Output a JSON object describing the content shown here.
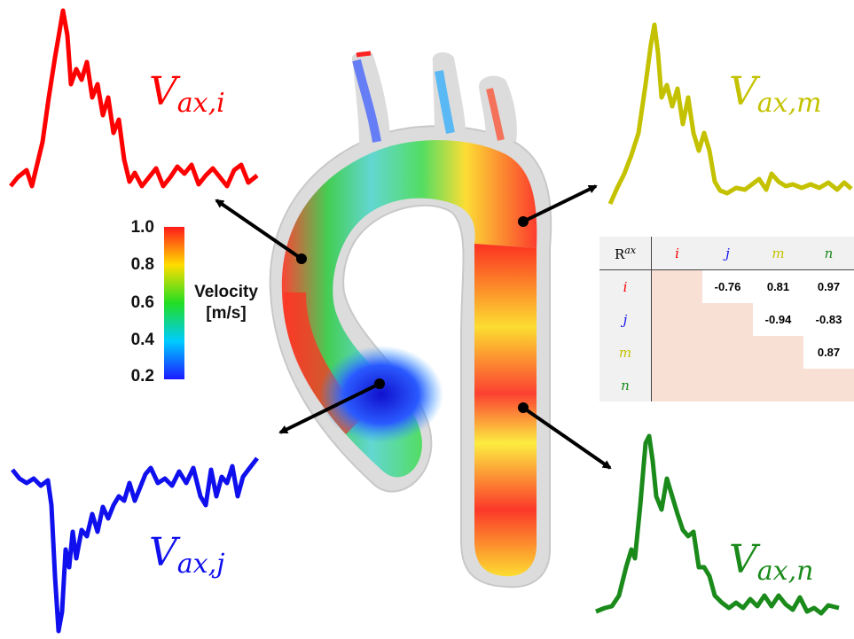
{
  "labels": {
    "i": {
      "base": "V",
      "sub": "ax,i",
      "color": "#ff0000"
    },
    "j": {
      "base": "V",
      "sub": "ax,j",
      "color": "#1010ee"
    },
    "m": {
      "base": "V",
      "sub": "ax,m",
      "color": "#c4c200"
    },
    "n": {
      "base": "V",
      "sub": "ax,n",
      "color": "#1a8a1a"
    }
  },
  "colorbar": {
    "title_line1": "Velocity",
    "title_line2": "[m/s]",
    "ticks": [
      "1.0",
      "0.8",
      "0.6",
      "0.4",
      "0.2"
    ]
  },
  "table": {
    "corner": "R",
    "corner_sup": "ax",
    "headers": [
      "i",
      "j",
      "m",
      "n"
    ],
    "header_colors": [
      "#ff0000",
      "#1010ee",
      "#c4c200",
      "#1a8a1a"
    ],
    "rows": [
      {
        "label": "i",
        "color": "#ff0000",
        "cells": [
          "",
          "-0.76",
          "0.81",
          "0.97"
        ]
      },
      {
        "label": "j",
        "color": "#1010ee",
        "cells": [
          "",
          "",
          "-0.94",
          "-0.83"
        ]
      },
      {
        "label": "m",
        "color": "#c4c200",
        "cells": [
          "",
          "",
          "",
          "0.87"
        ]
      },
      {
        "label": "n",
        "color": "#1a8a1a",
        "cells": [
          "",
          "",
          "",
          ""
        ]
      }
    ]
  }
}
